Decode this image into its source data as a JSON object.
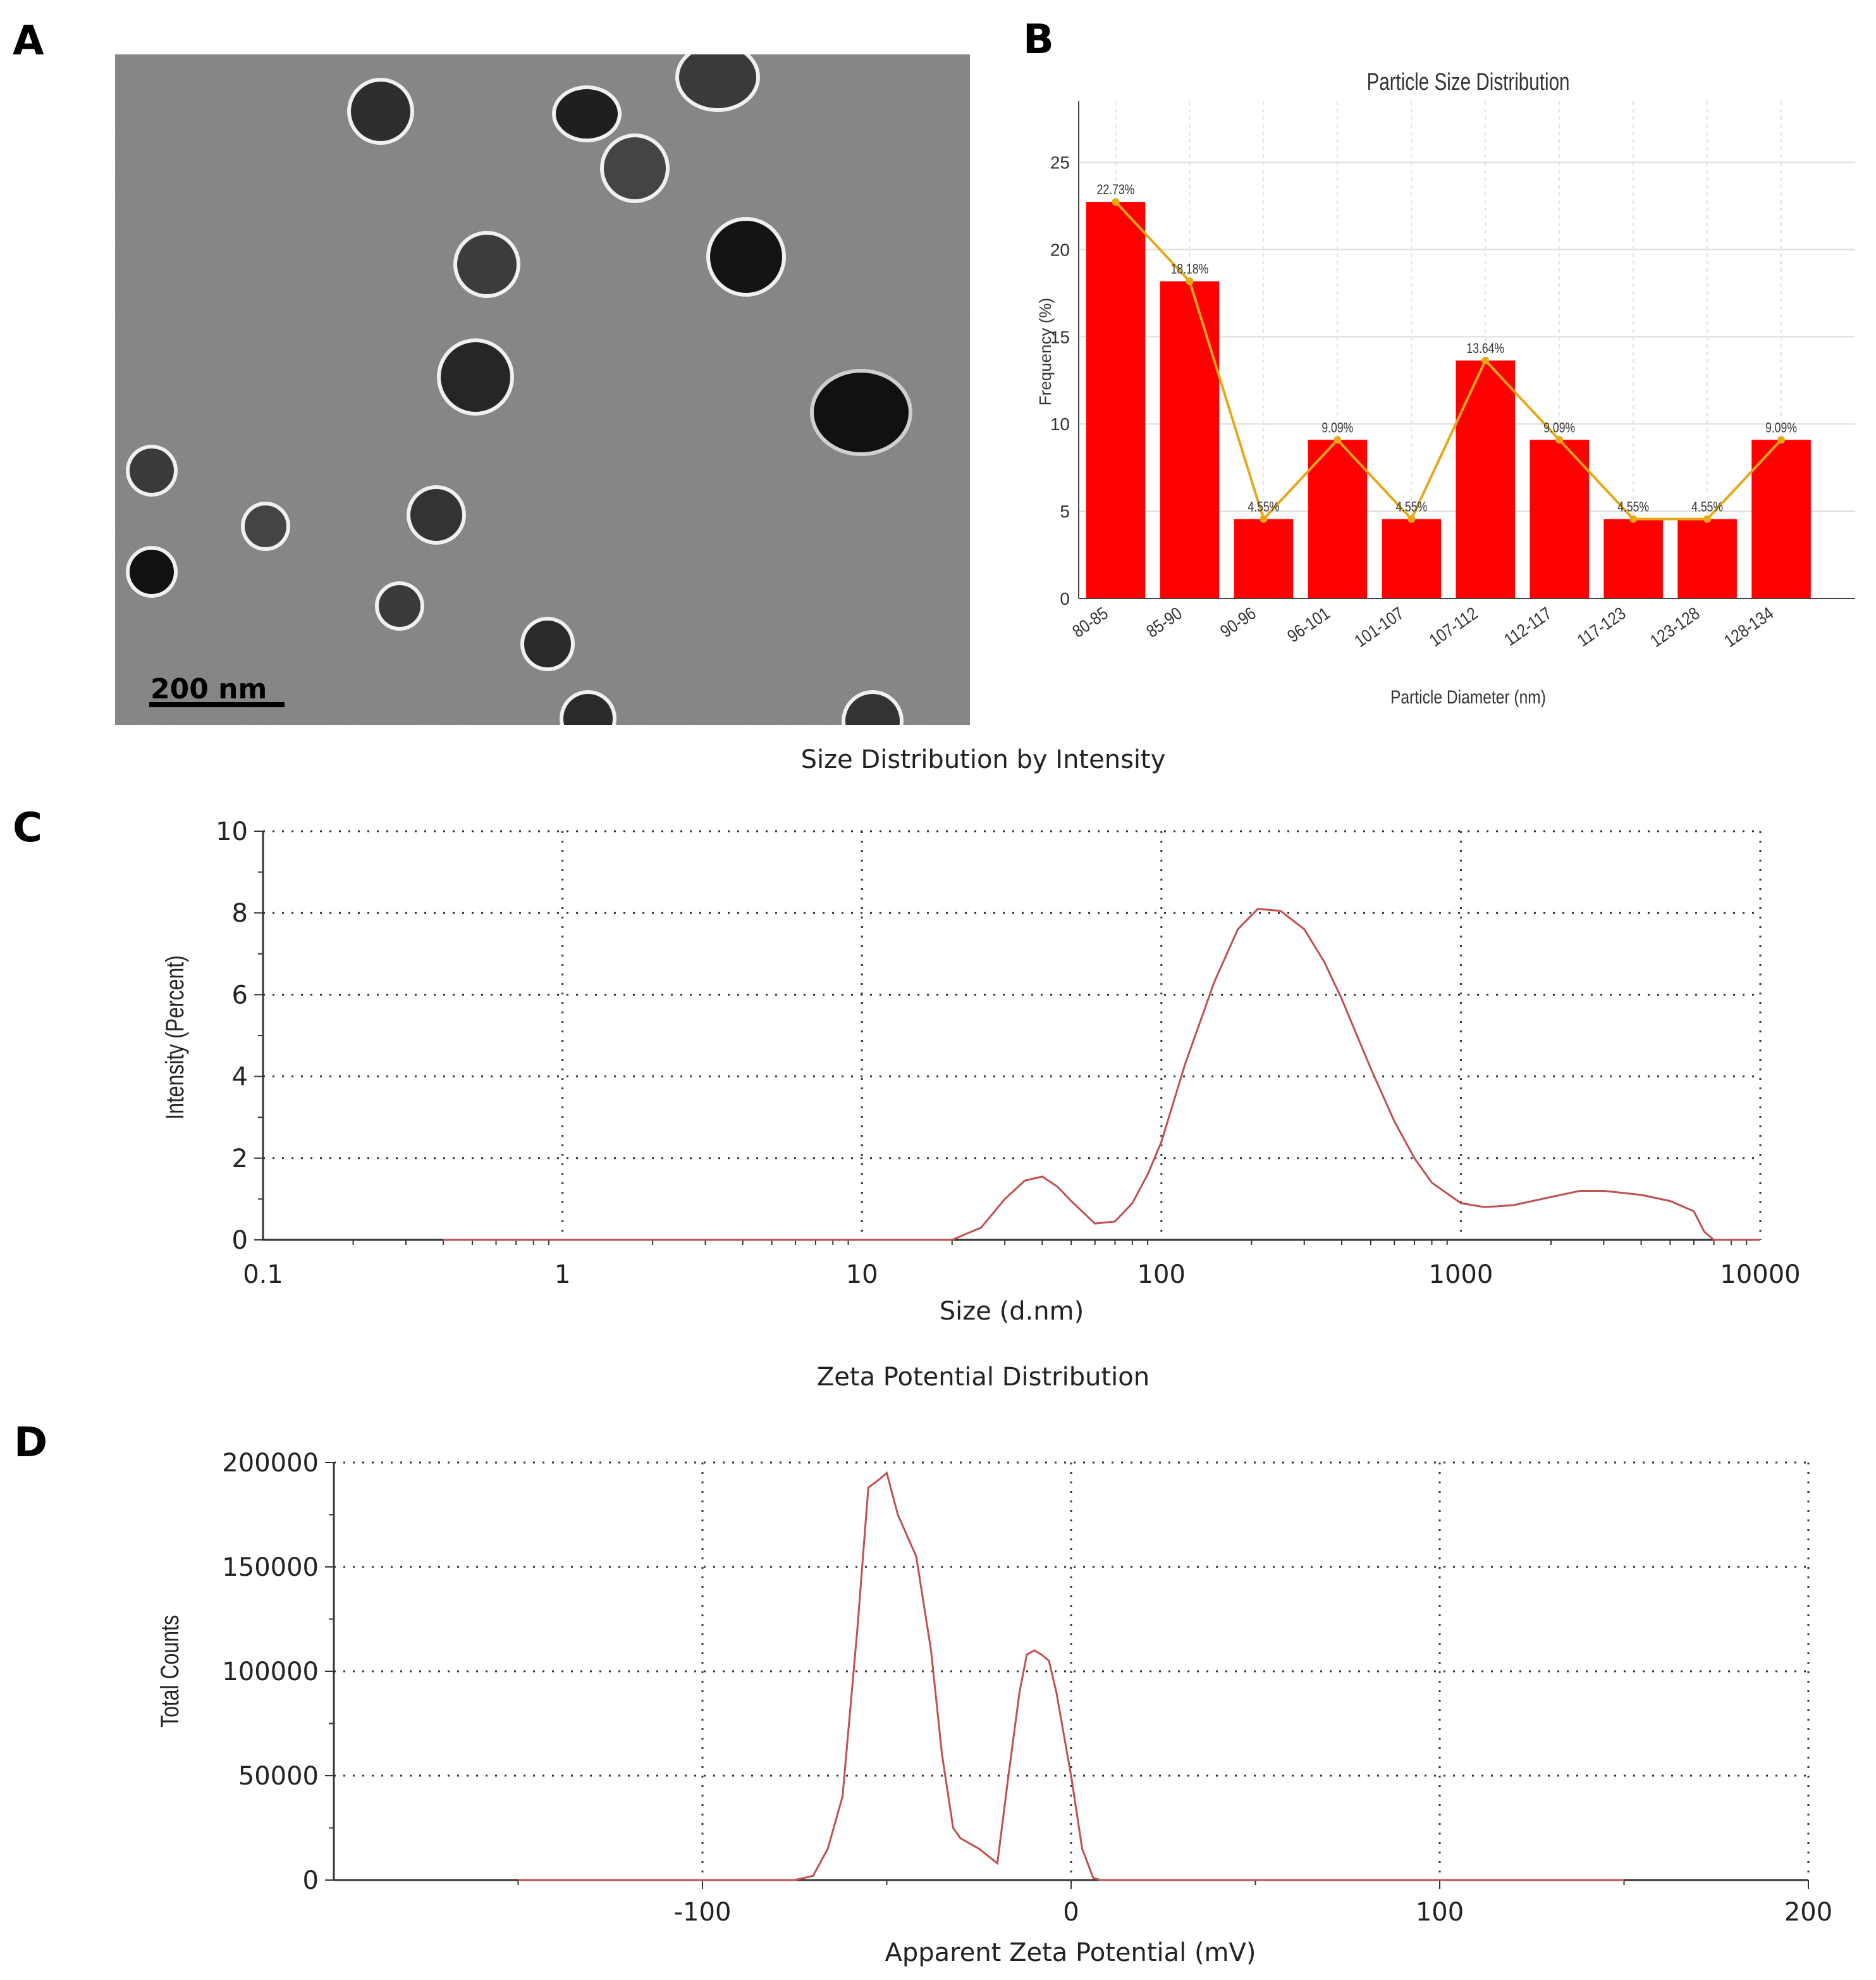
{
  "panels": {
    "a": {
      "label": "A"
    },
    "b": {
      "label": "B"
    },
    "c": {
      "label": "C"
    },
    "d": {
      "label": "D"
    }
  },
  "tem": {
    "scale_bar_label": "200 nm",
    "background_color": "#8c8c8c",
    "particle_color": "#2a2a2a"
  },
  "chart_data": [
    {
      "id": "b",
      "type": "bar",
      "title": "Particle Size Distribution",
      "xlabel": "Particle Diameter (nm)",
      "ylabel": "Frequency (%)",
      "categories": [
        "80-85",
        "85-90",
        "90-96",
        "96-101",
        "101-107",
        "107-112",
        "112-117",
        "117-123",
        "123-128",
        "128-134"
      ],
      "values": [
        22.73,
        18.18,
        4.55,
        9.09,
        4.55,
        13.64,
        9.09,
        4.55,
        4.55,
        9.09
      ],
      "data_labels": [
        "22.73%",
        "18.18%",
        "4.55%",
        "9.09%",
        "4.55%",
        "13.64%",
        "9.09%",
        "4.55%",
        "4.55%",
        "9.09%"
      ],
      "overlay_line": "same values connected with markers",
      "ylim": [
        0,
        28.5
      ],
      "yticks": [
        0,
        5,
        10,
        15,
        20,
        25
      ],
      "grid": true,
      "colors": {
        "bar": "#ff0000",
        "line": "#e6a817"
      }
    },
    {
      "id": "c",
      "type": "line",
      "title": "Size Distribution by Intensity",
      "xlabel": "Size (d.nm)",
      "ylabel": "Intensity (Percent)",
      "xscale": "log",
      "xlim": [
        0.1,
        10000
      ],
      "ylim": [
        0,
        10
      ],
      "xticks": [
        0.1,
        1,
        10,
        100,
        1000,
        10000
      ],
      "xtick_labels": [
        "0.1",
        "1",
        "10",
        "100",
        "1000",
        "10000"
      ],
      "yticks": [
        0,
        2,
        4,
        6,
        8,
        10
      ],
      "grid": true,
      "color": "#c0504d",
      "x": [
        0.4,
        1,
        5,
        10,
        20,
        25,
        30,
        35,
        40,
        45,
        50,
        60,
        70,
        80,
        90,
        100,
        120,
        150,
        180,
        210,
        250,
        300,
        350,
        400,
        500,
        600,
        700,
        800,
        1000,
        1200,
        1500,
        2000,
        2500,
        3000,
        4000,
        5000,
        6000,
        6500,
        7000,
        10000
      ],
      "y": [
        0,
        0,
        0,
        0,
        0,
        0.3,
        1.0,
        1.45,
        1.55,
        1.3,
        0.95,
        0.4,
        0.45,
        0.9,
        1.6,
        2.4,
        4.3,
        6.3,
        7.6,
        8.1,
        8.05,
        7.6,
        6.8,
        5.9,
        4.2,
        2.9,
        2.0,
        1.4,
        0.9,
        0.8,
        0.85,
        1.05,
        1.2,
        1.2,
        1.1,
        0.95,
        0.7,
        0.2,
        0,
        0
      ]
    },
    {
      "id": "d",
      "type": "line",
      "title": "Zeta Potential Distribution",
      "xlabel": "Apparent Zeta Potential (mV)",
      "ylabel": "Total Counts",
      "xlim": [
        -200,
        200
      ],
      "ylim": [
        0,
        200000
      ],
      "xticks": [
        -100,
        0,
        100,
        200
      ],
      "yticks": [
        0,
        50000,
        100000,
        150000,
        200000
      ],
      "grid": true,
      "color": "#c0504d",
      "x": [
        -150,
        -100,
        -75,
        -70,
        -66,
        -62,
        -58,
        -55,
        -52,
        -50,
        -47,
        -42,
        -38,
        -35,
        -32,
        -30,
        -25,
        -20,
        -17,
        -14,
        -12,
        -10,
        -8,
        -6,
        -4,
        -2,
        0,
        3,
        6,
        8,
        20,
        50,
        100,
        150
      ],
      "y": [
        0,
        0,
        0,
        2000,
        15000,
        40000,
        120000,
        188000,
        192000,
        195000,
        175000,
        155000,
        110000,
        60000,
        25000,
        20000,
        15000,
        8000,
        50000,
        90000,
        108000,
        110000,
        108000,
        105000,
        90000,
        70000,
        50000,
        15000,
        1000,
        0,
        0,
        0,
        0,
        0
      ]
    }
  ]
}
